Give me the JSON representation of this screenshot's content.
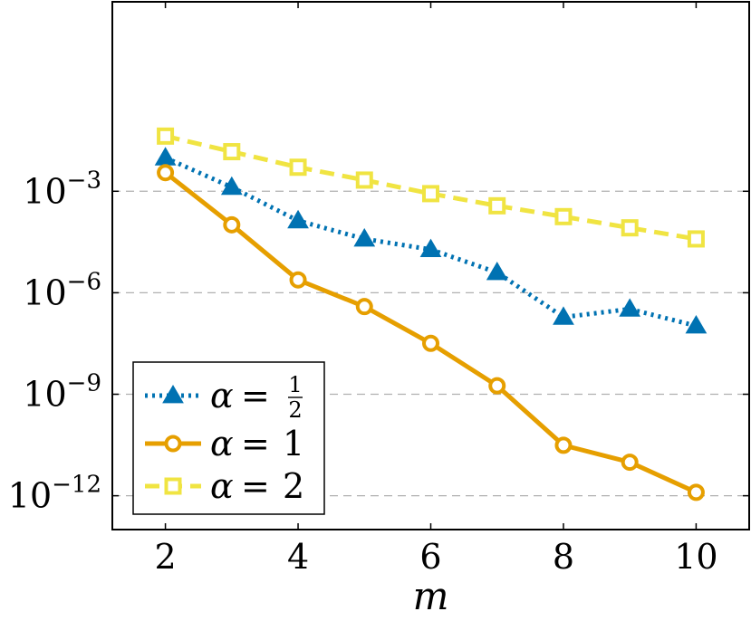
{
  "chart_data": {
    "type": "line",
    "xlabel": "m",
    "ylabel": "",
    "y_scale": "log",
    "xlim": [
      1.2,
      10.8
    ],
    "ylim_log10": [
      -13,
      2.6
    ],
    "x_ticks": [
      2,
      4,
      6,
      8,
      10
    ],
    "y_ticks": [
      {
        "base": "10",
        "exp": "−3",
        "log10": -3
      },
      {
        "base": "10",
        "exp": "−6",
        "log10": -6
      },
      {
        "base": "10",
        "exp": "−9",
        "log10": -9
      },
      {
        "base": "10",
        "exp": "−12",
        "log10": -12
      }
    ],
    "grid": "horizontal dashed at major y ticks",
    "legend_position": "bottom-left",
    "series": [
      {
        "name": "α = 1/2",
        "legend": {
          "lhs": "α",
          "eq": "=",
          "num": "1",
          "den": "2"
        },
        "color": "#0072B2",
        "line_style": "dotted",
        "marker": "triangle",
        "x": [
          2,
          3,
          4,
          5,
          6,
          7,
          8,
          9,
          10
        ],
        "y": [
          0.00977,
          0.00132,
          0.000135,
          3.9e-05,
          1.9e-05,
          3.98e-06,
          1.9e-07,
          3.3e-07,
          1.05e-07
        ]
      },
      {
        "name": "α = 1",
        "legend": {
          "lhs": "α",
          "eq": "=",
          "val": "1"
        },
        "color": "#E69F00",
        "line_style": "solid",
        "marker": "circle",
        "x": [
          2,
          3,
          4,
          5,
          6,
          7,
          8,
          9,
          10
        ],
        "y": [
          0.00355,
          0.000102,
          2.4e-06,
          3.9e-07,
          3.2e-08,
          1.78e-09,
          3.1e-11,
          9.8e-12,
          1.26e-12
        ]
      },
      {
        "name": "α = 2",
        "legend": {
          "lhs": "α",
          "eq": "=",
          "val": "2"
        },
        "color": "#F0E442",
        "line_style": "dashed",
        "marker": "square",
        "x": [
          2,
          3,
          4,
          5,
          6,
          7,
          8,
          9,
          10
        ],
        "y": [
          0.0427,
          0.0148,
          0.00513,
          0.00214,
          0.000851,
          0.000372,
          0.000178,
          8.3e-05,
          3.9e-05
        ]
      }
    ]
  }
}
